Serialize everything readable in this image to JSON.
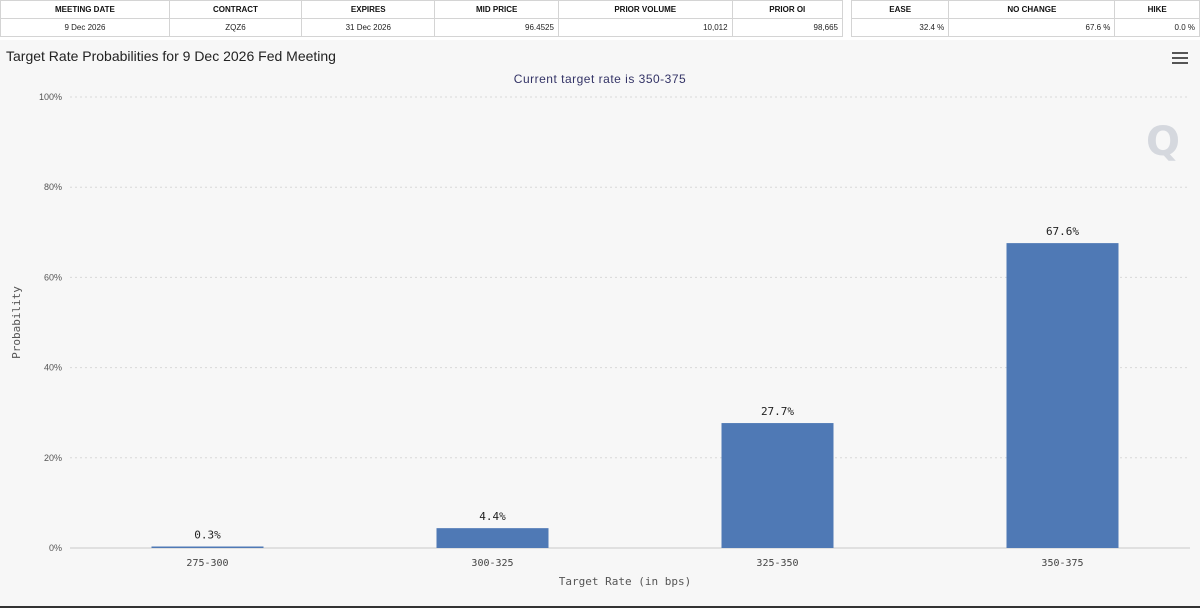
{
  "summary_table": {
    "headers": [
      "MEETING DATE",
      "CONTRACT",
      "EXPIRES",
      "MID PRICE",
      "PRIOR VOLUME",
      "PRIOR OI"
    ],
    "row": [
      "9 Dec 2026",
      "ZQZ6",
      "31 Dec 2026",
      "96.4525",
      "10,012",
      "98,665"
    ]
  },
  "probability_table": {
    "headers": [
      "EASE",
      "NO CHANGE",
      "HIKE"
    ],
    "row": [
      "32.4 %",
      "67.6 %",
      "0.0 %"
    ]
  },
  "chart_data": {
    "type": "bar",
    "title": "Target Rate Probabilities for 9 Dec 2026 Fed Meeting",
    "subtitle": "Current target rate is 350-375",
    "xlabel": "Target Rate (in bps)",
    "ylabel": "Probability",
    "categories": [
      "275-300",
      "300-325",
      "325-350",
      "350-375"
    ],
    "values": [
      0.3,
      4.4,
      27.7,
      67.6
    ],
    "data_labels": [
      "0.3%",
      "4.4%",
      "27.7%",
      "67.6%"
    ],
    "ylim": [
      0,
      100
    ],
    "yticks": [
      0,
      20,
      40,
      60,
      80,
      100
    ],
    "ytick_labels": [
      "0%",
      "20%",
      "40%",
      "60%",
      "80%",
      "100%"
    ],
    "grid": true,
    "legend": "none",
    "bar_color": "#4f79b5",
    "watermark": "Q"
  }
}
